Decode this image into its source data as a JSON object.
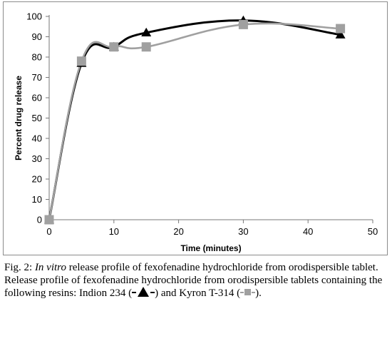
{
  "chart_data": {
    "type": "line",
    "xlabel": "Time (minutes)",
    "ylabel": "Percent drug release",
    "xlim": [
      0,
      50
    ],
    "ylim": [
      0,
      100
    ],
    "xticks": [
      0,
      10,
      20,
      30,
      40,
      50
    ],
    "yticks": [
      0,
      10,
      20,
      30,
      40,
      50,
      60,
      70,
      80,
      90,
      100
    ],
    "grid": false,
    "series": [
      {
        "name": "Indion 234",
        "marker": "triangle",
        "color": "#000000",
        "x": [
          0,
          5,
          10,
          15,
          30,
          45
        ],
        "y": [
          0,
          77,
          85,
          92,
          98,
          91
        ]
      },
      {
        "name": "Kyron T-314",
        "marker": "square",
        "color": "#a0a0a0",
        "x": [
          0,
          5,
          10,
          15,
          30,
          45
        ],
        "y": [
          0,
          78,
          85,
          85,
          96,
          94
        ]
      }
    ]
  },
  "caption": {
    "fig_label": "Fig. 2:",
    "title_italic": "In vitro",
    "title_rest": "release profile of fexofenadine hydrochloride from orodispersible tablet.",
    "desc_main": "Release profile of fexofenadine hydrochloride from orodispersible tablets containing the following resins: Indion 234 (",
    "desc_mid": ") and Kyron T-314 (",
    "desc_end": ")."
  }
}
